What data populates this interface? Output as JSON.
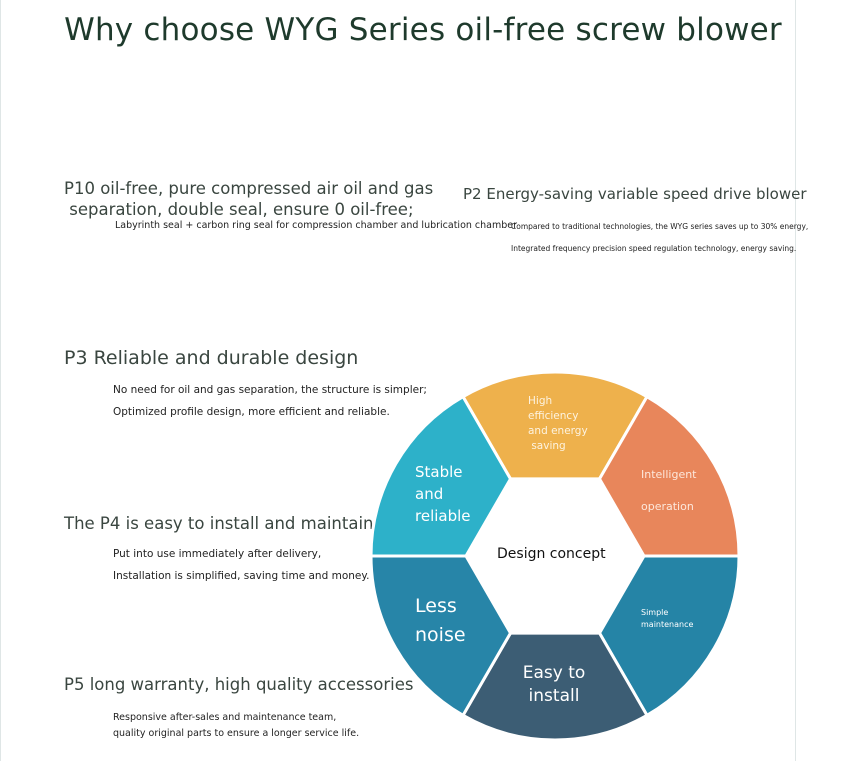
{
  "title": "Why choose WYG Series oil-free screw blower",
  "features": [
    {
      "heading_lines": [
        "P10 oil-free, pure compressed air oil and gas",
        " separation, double seal, ensure 0 oil-free;"
      ],
      "details": [
        "Labyrinth seal + carbon ring seal for compression chamber and lubrication chamber"
      ]
    },
    {
      "heading": "P2 Energy-saving variable speed drive blower",
      "details": [
        "Compared to traditional technologies, the WYG series saves up to 30% energy,",
        "Integrated frequency precision speed regulation technology, energy saving."
      ]
    },
    {
      "heading": "P3 Reliable and durable design",
      "details": [
        "No need for oil and gas separation, the structure is simpler;",
        "Optimized profile design, more efficient and reliable."
      ]
    },
    {
      "heading": "The P4 is easy to install and maintain",
      "details": [
        "Put into use immediately after delivery,",
        "Installation is simplified, saving time and money."
      ]
    },
    {
      "heading": "P5 long warranty, high quality accessories",
      "details": [
        "Responsive after-sales and maintenance team,",
        "quality original parts to ensure a longer service life."
      ]
    }
  ],
  "diagram": {
    "center": "Design concept",
    "segments": [
      {
        "label": [
          "High",
          "efficiency",
          "and energy",
          " saving"
        ],
        "color": "#EEB14C"
      },
      {
        "label": [
          "Intelligent",
          "",
          "operation"
        ],
        "color": "#E8865B"
      },
      {
        "label": [
          "Simple",
          "maintenance"
        ],
        "color": "#2584A6"
      },
      {
        "label": [
          "Easy to",
          "install"
        ],
        "color": "#3C5D74"
      },
      {
        "label": [
          "Less",
          "noise"
        ],
        "color": "#2785A8"
      },
      {
        "label": [
          "Stable",
          "and",
          "reliable"
        ],
        "color": "#2DB1C9"
      }
    ]
  }
}
